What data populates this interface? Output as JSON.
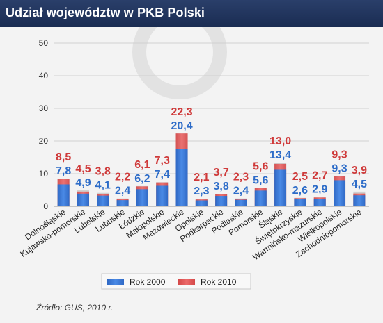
{
  "header": {
    "title": "Udział województw w PKB Polski"
  },
  "chart_data": {
    "type": "bar",
    "title": "Udział województw w PKB Polski",
    "ylim": [
      0,
      50
    ],
    "yticks": [
      0,
      10,
      20,
      30,
      40,
      50
    ],
    "grid": true,
    "legend_position": "bottom",
    "categories": [
      "Dolnośląskie",
      "Kujawsko-pomorskie",
      "Lubelskie",
      "Lubuskie",
      "Łódzkie",
      "Małopolskie",
      "Mazowieckie",
      "Opolskie",
      "Podkarpackie",
      "Podlaskie",
      "Pomorskie",
      "Śląskie",
      "Świętokrzyskie",
      "Warmińsko-mazurskie",
      "Wielkopolskie",
      "Zachodniopomorskie"
    ],
    "series": [
      {
        "name": "Rok 2000",
        "color": "#3a78d4",
        "values": [
          7.8,
          4.9,
          4.1,
          2.4,
          6.2,
          7.4,
          20.4,
          2.3,
          3.8,
          2.4,
          5.6,
          13.4,
          2.6,
          2.9,
          9.3,
          4.5
        ],
        "labels": [
          "7,8",
          "4,9",
          "4,1",
          "2,4",
          "6,2",
          "7,4",
          "20,4",
          "2,3",
          "3,8",
          "2,4",
          "5,6",
          "13,4",
          "2,6",
          "2,9",
          "9,3",
          "4,5"
        ]
      },
      {
        "name": "Rok 2010",
        "color": "#e05555",
        "values": [
          8.5,
          4.5,
          3.8,
          2.2,
          6.1,
          7.3,
          22.3,
          2.1,
          3.7,
          2.3,
          5.6,
          13.0,
          2.5,
          2.7,
          9.3,
          3.9
        ],
        "labels": [
          "8,5",
          "4,5",
          "3,8",
          "2,2",
          "6,1",
          "7,3",
          "22,3",
          "2,1",
          "3,7",
          "2,3",
          "5,6",
          "13,0",
          "2,5",
          "2,7",
          "9,3",
          "3,9"
        ]
      }
    ]
  },
  "source": "Źródło: GUS, 2010 r."
}
